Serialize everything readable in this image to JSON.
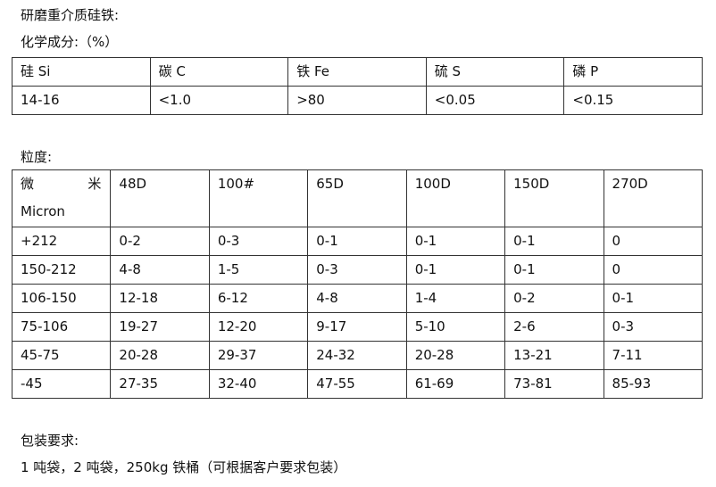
{
  "title": "研磨重介质硅铁:",
  "chem_label": "化学成分:（%）",
  "chem_table": {
    "headers": [
      "硅 Si",
      "碳 C",
      "铁 Fe",
      "硫 S",
      "磷 P"
    ],
    "values": [
      "14-16",
      "<1.0",
      ">80",
      "<0.05",
      "<0.15"
    ]
  },
  "size_label": "粒度:",
  "size_table": {
    "corner": {
      "a": "微",
      "b": "米",
      "c": "Micron"
    },
    "headers": [
      "48D",
      "100#",
      "65D",
      "100D",
      "150D",
      "270D"
    ],
    "rows": [
      [
        "+212",
        "0-2",
        "0-3",
        "0-1",
        "0-1",
        "0-1",
        "0"
      ],
      [
        "150-212",
        "4-8",
        "1-5",
        "0-3",
        "0-1",
        "0-1",
        "0"
      ],
      [
        "106-150",
        "12-18",
        "6-12",
        "4-8",
        "1-4",
        "0-2",
        "0-1"
      ],
      [
        "75-106",
        "19-27",
        "12-20",
        "9-17",
        "5-10",
        "2-6",
        "0-3"
      ],
      [
        "45-75",
        "20-28",
        "29-37",
        "24-32",
        "20-28",
        "13-21",
        "7-11"
      ],
      [
        "-45",
        "27-35",
        "32-40",
        "47-55",
        "61-69",
        "73-81",
        "85-93"
      ]
    ]
  },
  "packing_label": "包装要求:",
  "packing_text": "1 吨袋，2 吨袋，250kg 铁桶（可根据客户要求包装）"
}
